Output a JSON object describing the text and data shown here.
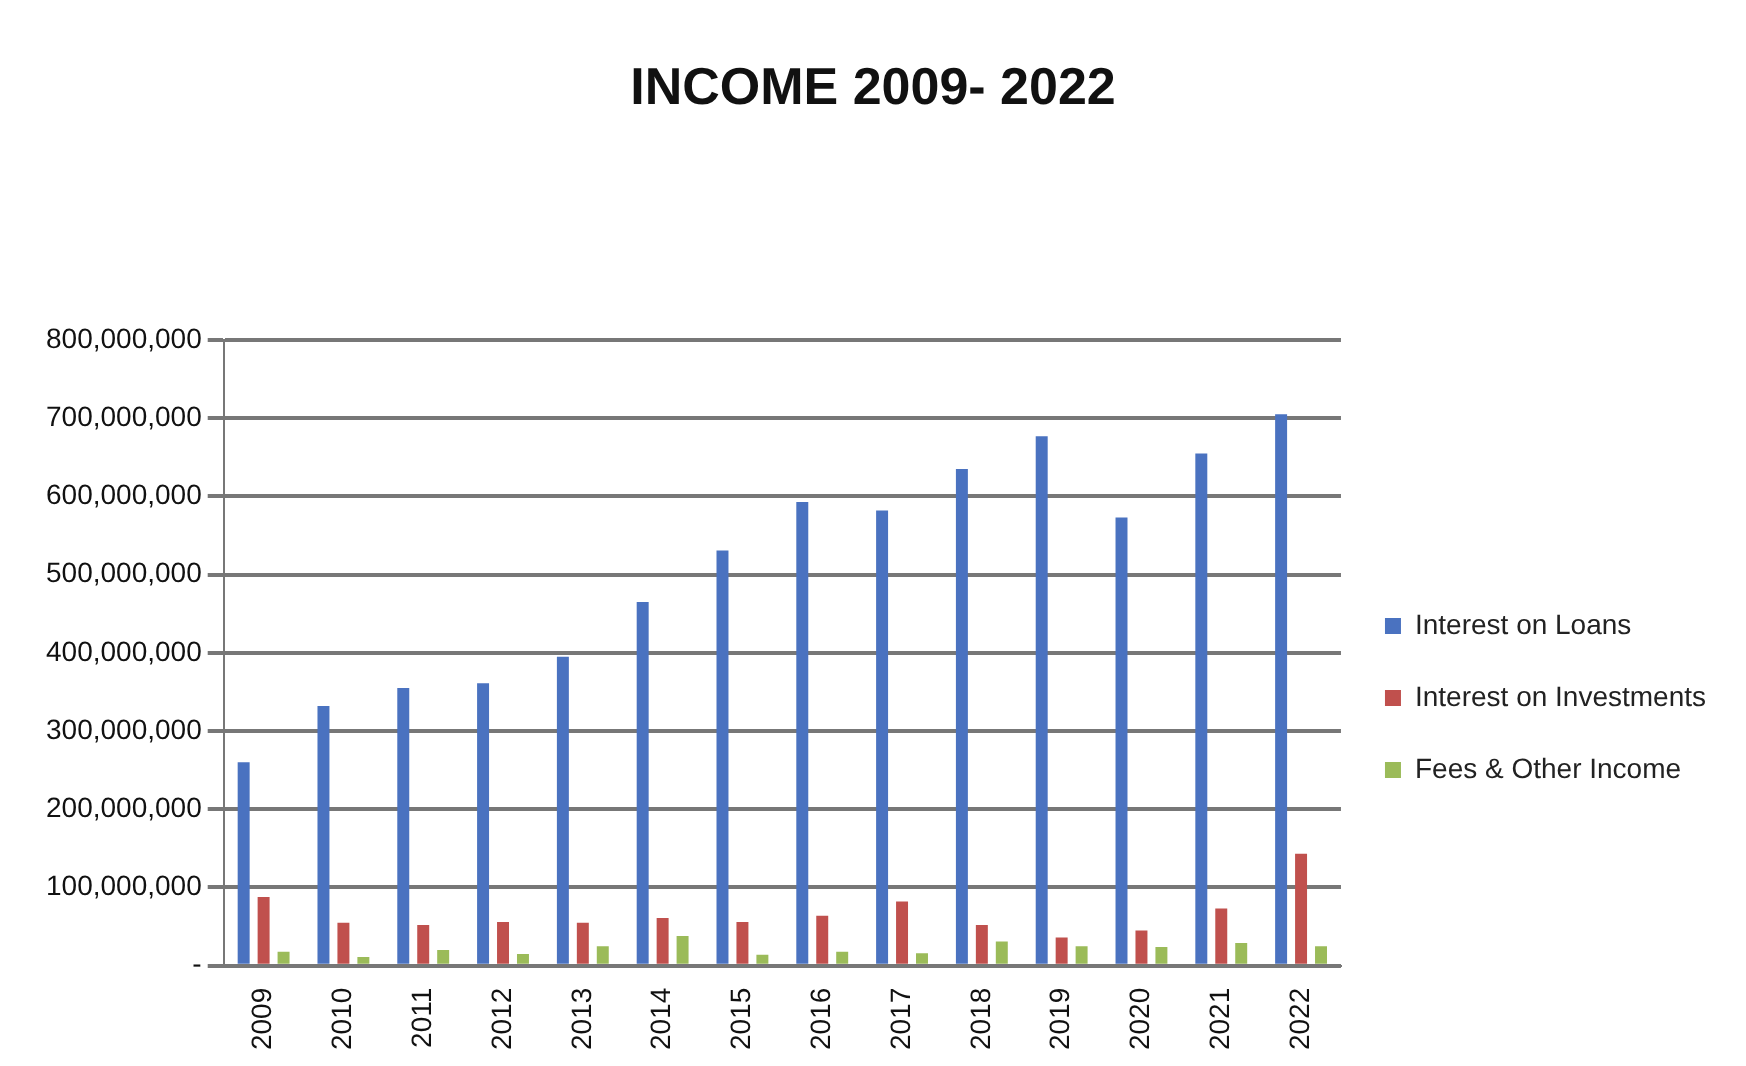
{
  "chart_data": {
    "type": "bar",
    "title": "INCOME 2009- 2022",
    "categories": [
      "2009",
      "2010",
      "2011",
      "2012",
      "2013",
      "2014",
      "2015",
      "2016",
      "2017",
      "2018",
      "2019",
      "2020",
      "2021",
      "2022"
    ],
    "series": [
      {
        "name": "Interest on Loans",
        "color": "#4a72c0",
        "values": [
          260000000,
          332000000,
          355000000,
          361000000,
          395000000,
          465000000,
          531000000,
          593000000,
          582000000,
          635000000,
          677000000,
          573000000,
          655000000,
          705000000
        ]
      },
      {
        "name": "Interest on Investments",
        "color": "#c0504d",
        "values": [
          88000000,
          55000000,
          52000000,
          56000000,
          55000000,
          61000000,
          56000000,
          64000000,
          82000000,
          52000000,
          36000000,
          45000000,
          73000000,
          143000000
        ]
      },
      {
        "name": "Fees & Other Income",
        "color": "#9bbb59",
        "values": [
          18000000,
          11000000,
          20000000,
          15000000,
          25000000,
          38000000,
          14000000,
          18000000,
          16000000,
          31000000,
          25000000,
          24000000,
          29000000,
          25000000
        ]
      }
    ],
    "ylim": [
      0,
      800000000
    ],
    "yticks": [
      {
        "value": 0,
        "label": "-"
      },
      {
        "value": 100000000,
        "label": "100,000,000"
      },
      {
        "value": 200000000,
        "label": "200,000,000"
      },
      {
        "value": 300000000,
        "label": "300,000,000"
      },
      {
        "value": 400000000,
        "label": "400,000,000"
      },
      {
        "value": 500000000,
        "label": "500,000,000"
      },
      {
        "value": 600000000,
        "label": "600,000,000"
      },
      {
        "value": 700000000,
        "label": "700,000,000"
      },
      {
        "value": 800000000,
        "label": "800,000,000"
      }
    ],
    "grid": "y",
    "legend": "right"
  }
}
